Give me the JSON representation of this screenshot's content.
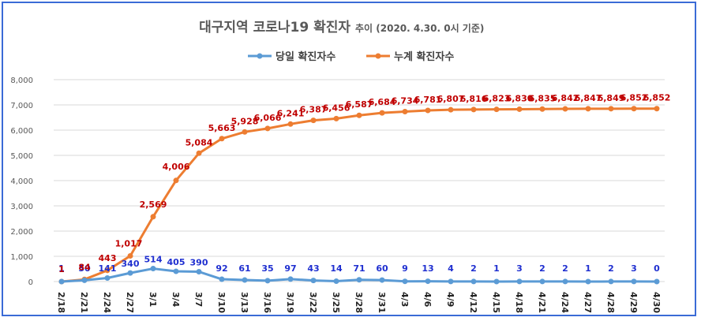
{
  "chart_data": {
    "type": "line",
    "title": "대구지역 코로나19 확진자",
    "subtitle": "추이 (2020. 4.30. 0시 기준)",
    "categories": [
      "2/18",
      "2/21",
      "2/24",
      "2/27",
      "3/1",
      "3/4",
      "3/7",
      "3/10",
      "3/13",
      "3/16",
      "3/19",
      "3/22",
      "3/25",
      "3/28",
      "3/31",
      "4/3",
      "4/6",
      "4/9",
      "4/12",
      "4/15",
      "4/18",
      "4/21",
      "4/24",
      "4/27",
      "4/28",
      "4/29",
      "4/30"
    ],
    "series": [
      {
        "name": "당일 확진자수",
        "color": "#5b9bd5",
        "label_color": "#1f2fd0",
        "values": [
          1,
          50,
          141,
          340,
          514,
          405,
          390,
          92,
          61,
          35,
          97,
          43,
          14,
          71,
          60,
          9,
          13,
          4,
          2,
          1,
          3,
          2,
          2,
          1,
          2,
          3,
          0
        ]
      },
      {
        "name": "누계 확진자수",
        "color": "#ed7d31",
        "label_color": "#c00000",
        "values": [
          1,
          84,
          443,
          1017,
          2569,
          4006,
          5084,
          5663,
          5928,
          6066,
          6241,
          6387,
          6456,
          6587,
          6684,
          6734,
          6781,
          6807,
          6816,
          6823,
          6830,
          6835,
          6842,
          6847,
          6849,
          6852,
          6852
        ]
      }
    ],
    "ylim": [
      0,
      8000
    ],
    "yticks": [
      "0",
      "1,000",
      "2,000",
      "3,000",
      "4,000",
      "5,000",
      "6,000",
      "7,000",
      "8,000"
    ],
    "grid": true,
    "legend": "top-center"
  }
}
